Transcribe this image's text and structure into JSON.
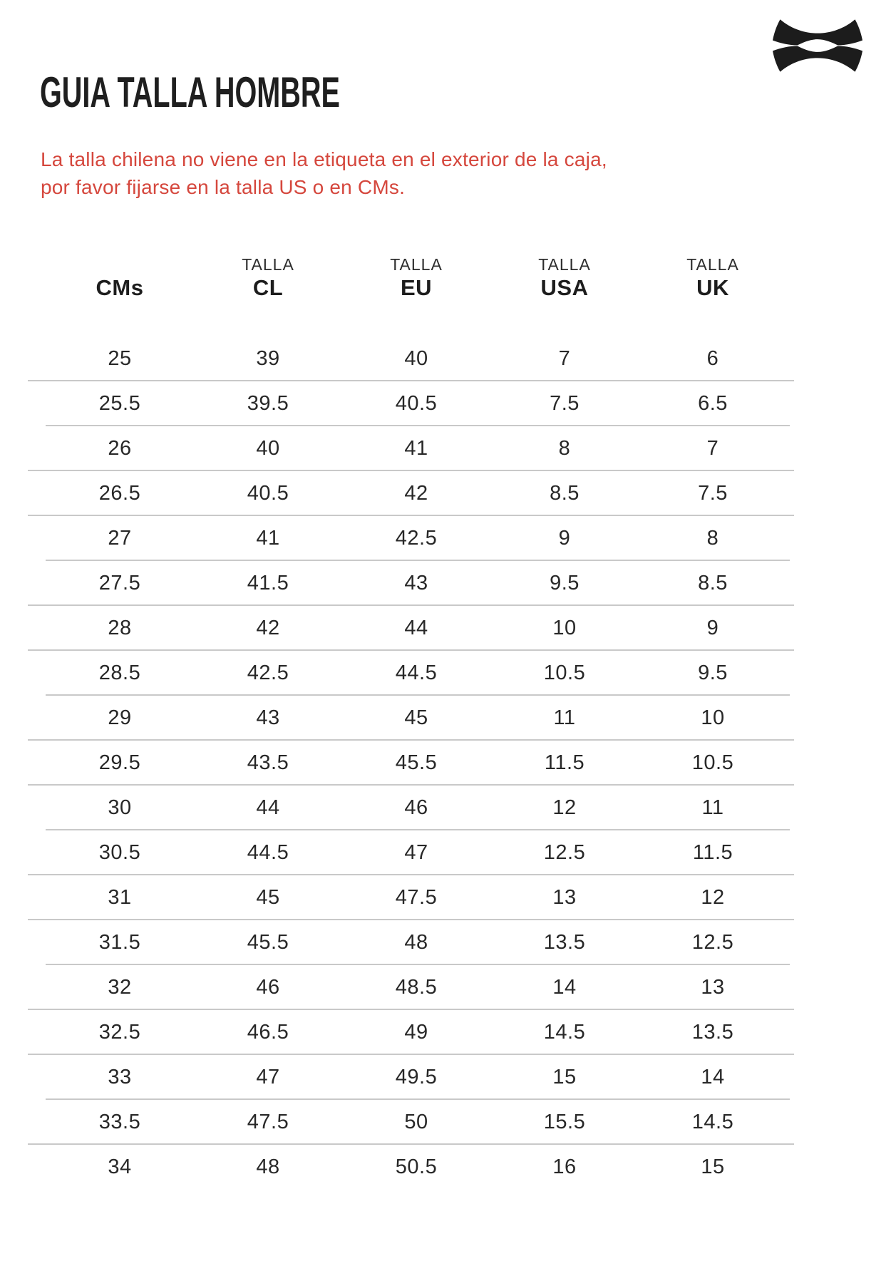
{
  "page": {
    "title": "GUIA TALLA HOMBRE",
    "note_line1": "La talla chilena no viene en la etiqueta en el exterior de la caja,",
    "note_line2": "por favor fijarse en la talla US o en CMs.",
    "colors": {
      "note_red": "#d5473d",
      "text_dark": "#1f1f1f",
      "table_text": "#282828",
      "divider_gray": "#c9c9c9",
      "logo_black": "#1c1c1c"
    },
    "logo": "under-armour-logo"
  },
  "table": {
    "columns": [
      {
        "top": "",
        "label": "CMs"
      },
      {
        "top": "TALLA",
        "label": "CL"
      },
      {
        "top": "TALLA",
        "label": "EU"
      },
      {
        "top": "TALLA",
        "label": "USA"
      },
      {
        "top": "TALLA",
        "label": "UK"
      }
    ],
    "rows": [
      [
        "25",
        "39",
        "40",
        "7",
        "6"
      ],
      [
        "25.5",
        "39.5",
        "40.5",
        "7.5",
        "6.5"
      ],
      [
        "26",
        "40",
        "41",
        "8",
        "7"
      ],
      [
        "26.5",
        "40.5",
        "42",
        "8.5",
        "7.5"
      ],
      [
        "27",
        "41",
        "42.5",
        "9",
        "8"
      ],
      [
        "27.5",
        "41.5",
        "43",
        "9.5",
        "8.5"
      ],
      [
        "28",
        "42",
        "44",
        "10",
        "9"
      ],
      [
        "28.5",
        "42.5",
        "44.5",
        "10.5",
        "9.5"
      ],
      [
        "29",
        "43",
        "45",
        "11",
        "10"
      ],
      [
        "29.5",
        "43.5",
        "45.5",
        "11.5",
        "10.5"
      ],
      [
        "30",
        "44",
        "46",
        "12",
        "11"
      ],
      [
        "30.5",
        "44.5",
        "47",
        "12.5",
        "11.5"
      ],
      [
        "31",
        "45",
        "47.5",
        "13",
        "12"
      ],
      [
        "31.5",
        "45.5",
        "48",
        "13.5",
        "12.5"
      ],
      [
        "32",
        "46",
        "48.5",
        "14",
        "13"
      ],
      [
        "32.5",
        "46.5",
        "49",
        "14.5",
        "13.5"
      ],
      [
        "33",
        "47",
        "49.5",
        "15",
        "14"
      ],
      [
        "33.5",
        "47.5",
        "50",
        "15.5",
        "14.5"
      ],
      [
        "34",
        "48",
        "50.5",
        "16",
        "15"
      ]
    ]
  }
}
